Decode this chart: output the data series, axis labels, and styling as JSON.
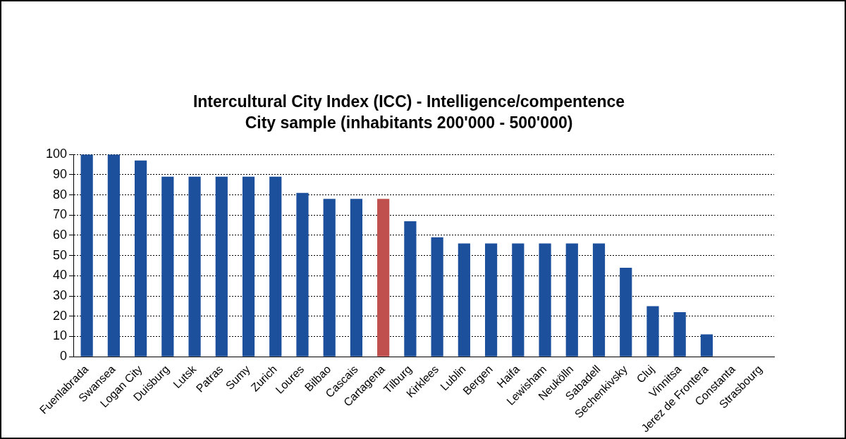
{
  "chart_data": {
    "type": "bar",
    "title": "Intercultural City Index (ICC) - Intelligence/compentence",
    "subtitle": "City sample (inhabitants 200'000 - 500'000)",
    "categories": [
      "Fuenlabrada",
      "Swansea",
      "Logan City",
      "Duisburg",
      "Lutsk",
      "Patras",
      "Sumy",
      "Zurich",
      "Loures",
      "Bilbao",
      "Cascais",
      "Cartagena",
      "Tilburg",
      "Kirklees",
      "Lublin",
      "Bergen",
      "Haifa",
      "Lewisham",
      "Neukölln",
      "Sabadell",
      "Sechenkivsky",
      "Cluj",
      "Vinnitsa",
      "Jerez de Frontera",
      "Constanta",
      "Strasbourg"
    ],
    "values": [
      100,
      100,
      97,
      89,
      89,
      89,
      89,
      89,
      81,
      78,
      78,
      78,
      67,
      59,
      56,
      56,
      56,
      56,
      56,
      56,
      44,
      25,
      22,
      11,
      0,
      0
    ],
    "colors": [
      "#1c4f9c",
      "#1c4f9c",
      "#1c4f9c",
      "#1c4f9c",
      "#1c4f9c",
      "#1c4f9c",
      "#1c4f9c",
      "#1c4f9c",
      "#1c4f9c",
      "#1c4f9c",
      "#1c4f9c",
      "#c0504d",
      "#1c4f9c",
      "#1c4f9c",
      "#1c4f9c",
      "#1c4f9c",
      "#1c4f9c",
      "#1c4f9c",
      "#1c4f9c",
      "#1c4f9c",
      "#1c4f9c",
      "#1c4f9c",
      "#1c4f9c",
      "#1c4f9c",
      "#1c4f9c",
      "#1c4f9c"
    ],
    "ylim": [
      0,
      100
    ],
    "yticks": [
      0,
      10,
      20,
      30,
      40,
      50,
      60,
      70,
      80,
      90,
      100
    ],
    "grid": "y",
    "legend": false
  }
}
